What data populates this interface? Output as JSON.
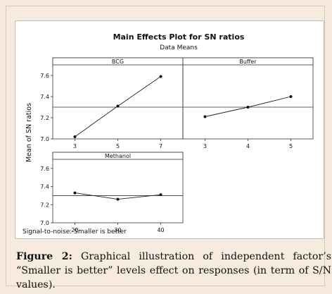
{
  "chart_data": {
    "type": "line",
    "title": "Main Effects Plot for SN ratios",
    "subtitle": "Data Means",
    "ylabel": "Mean of SN ratios",
    "note": "Signal-to-noise: Smaller is better",
    "ylim": [
      7.0,
      7.7
    ],
    "yticks": [
      "7.0",
      "7.2",
      "7.4",
      "7.6"
    ],
    "ytick_values": [
      7.0,
      7.2,
      7.4,
      7.6
    ],
    "reference_mean": 7.3,
    "grid": false,
    "panels": [
      {
        "name": "BCG",
        "categories": [
          "3",
          "5",
          "7"
        ],
        "values": [
          7.02,
          7.31,
          7.59
        ]
      },
      {
        "name": "Buffer",
        "categories": [
          "3",
          "4",
          "5"
        ],
        "values": [
          7.21,
          7.3,
          7.4
        ]
      },
      {
        "name": "Methanol",
        "categories": [
          "20",
          "30",
          "40"
        ],
        "values": [
          7.33,
          7.26,
          7.31
        ]
      }
    ]
  },
  "caption": {
    "label": "Figure 2:",
    "text": "Graphical illustration of independent factor’s “Smaller is better” levels effect on responses (in term of S/N values)."
  }
}
